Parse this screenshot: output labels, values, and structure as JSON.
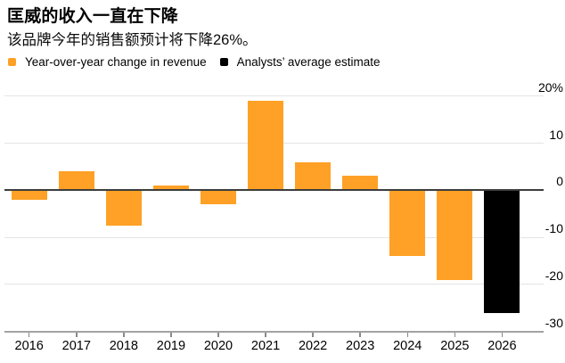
{
  "page": {
    "background": "#ffffff"
  },
  "header": {
    "title": "匡威的收入一直在下降",
    "subtitle": "该品牌今年的销售额预计将下降26%。"
  },
  "legend": {
    "items": [
      {
        "label": "Year-over-year change in revenue",
        "color": "#FEA126"
      },
      {
        "label": "Analysts’ average estimate",
        "color": "#000000"
      }
    ]
  },
  "chart_data": {
    "type": "bar",
    "title": "匡威的收入一直在下降",
    "subtitle": "该品牌今年的销售额预计将下降26%。",
    "categories": [
      "2016",
      "2017",
      "2018",
      "2019",
      "2020",
      "2021",
      "2022",
      "2023",
      "2024",
      "2025",
      "2026"
    ],
    "series": [
      {
        "name": "Year-over-year change in revenue",
        "color": "#FEA126",
        "values": [
          -2,
          4,
          -7.5,
          1,
          -3,
          19,
          6,
          3,
          -14,
          -19,
          null
        ]
      },
      {
        "name": "Analysts’ average estimate",
        "color": "#000000",
        "values": [
          null,
          null,
          null,
          null,
          null,
          null,
          null,
          null,
          null,
          null,
          -26
        ]
      }
    ],
    "unit": "%",
    "ylim": [
      -30,
      20
    ],
    "yticks": [
      {
        "value": 20,
        "label": "20%"
      },
      {
        "value": 10,
        "label": "10"
      },
      {
        "value": 0,
        "label": "0"
      },
      {
        "value": -10,
        "label": "-10"
      },
      {
        "value": -20,
        "label": "-20"
      },
      {
        "value": -30,
        "label": "-30"
      }
    ],
    "grid": "horizontal",
    "legend_position": "top",
    "y_axis_side": "right"
  },
  "colors": {
    "bar_orange": "#FEA126",
    "bar_black": "#000000",
    "gridline": "#e4e4e4",
    "zero_line": "#3d3d3d",
    "axis_line": "#a3a3a3",
    "text": "#000000"
  }
}
